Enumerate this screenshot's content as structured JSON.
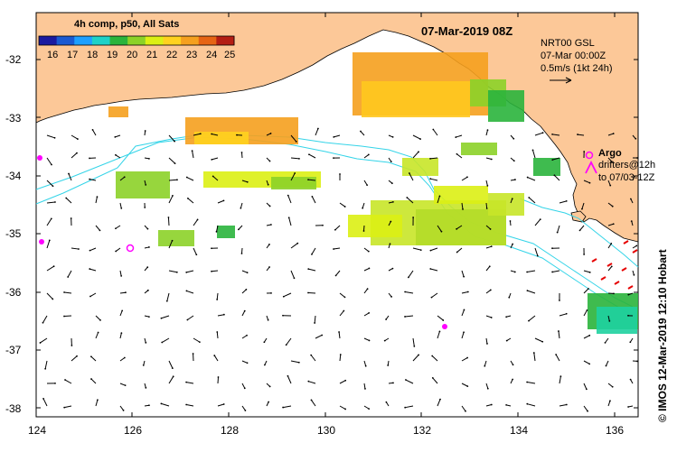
{
  "map": {
    "date_label": "07-Mar-2019 08Z",
    "colorbar": {
      "title": "4h comp, p50, All Sats",
      "ticks": [
        "16",
        "17",
        "18",
        "19",
        "20",
        "21",
        "22",
        "23",
        "24",
        "25"
      ],
      "colors": [
        "#1a1aa0",
        "#1a5ad2",
        "#1ea0ff",
        "#1ed2c8",
        "#2ab43c",
        "#8cd228",
        "#dcf014",
        "#ffd21e",
        "#f5a01e",
        "#e66414",
        "#b41e14"
      ]
    },
    "product": {
      "line1": "NRT00 GSL",
      "line2": "07-Mar 00:00Z",
      "line3": "0.5m/s (1kt 24h)"
    },
    "legend": {
      "argo_label": "Argo",
      "drifters_line1": "drifters@12h",
      "drifters_line2": "to 07/03-12Z"
    },
    "credit": "© IMOS 12-Mar-2019 12:10 Hobart",
    "axes": {
      "lat_ticks": [
        "-32",
        "-33",
        "-34",
        "-35",
        "-36",
        "-37",
        "-38"
      ],
      "lon_ticks": [
        "124",
        "126",
        "128",
        "130",
        "132",
        "134",
        "136"
      ]
    },
    "colors": {
      "land": "#fcc898",
      "sea": "#ffffff",
      "contour": "#34d4e8",
      "argo": "#ff00ff",
      "drifter": "#e60000"
    }
  }
}
